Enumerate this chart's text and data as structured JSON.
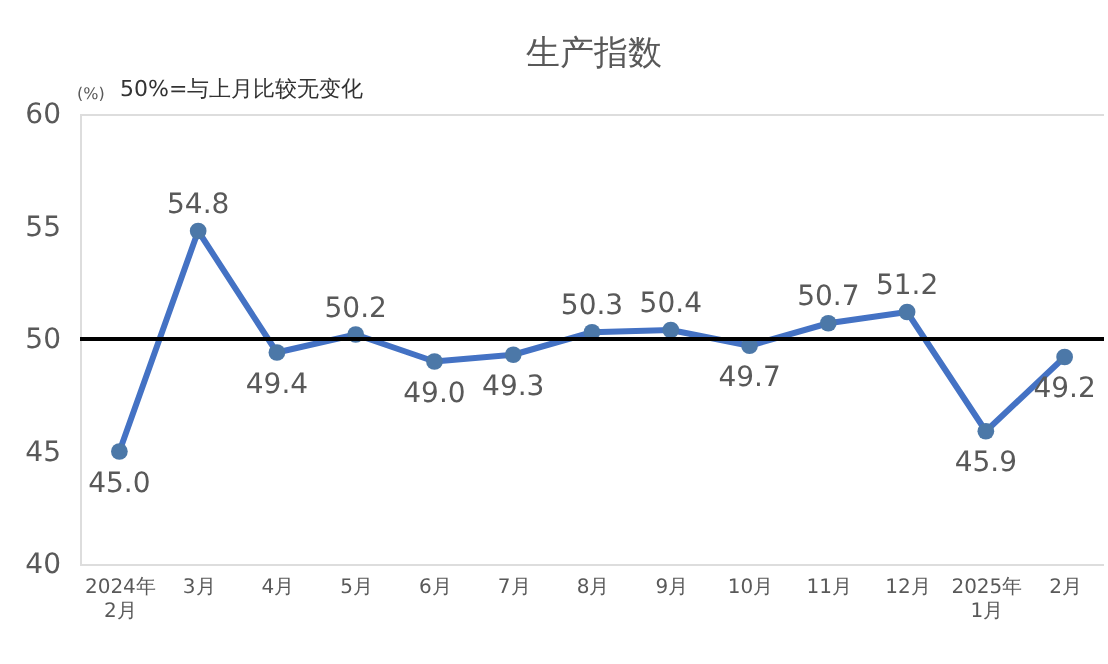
{
  "chart_data": {
    "type": "line",
    "title": "生产指数",
    "ylabel": "(%)",
    "annotations": [
      "50%=与上月比较无变化"
    ],
    "categories": [
      "2024年\n2月",
      "3月",
      "4月",
      "5月",
      "6月",
      "7月",
      "8月",
      "9月",
      "10月",
      "11月",
      "12月",
      "2025年\n1月",
      "2月"
    ],
    "series": [
      {
        "color": "#4472c4",
        "values": [
          45.0,
          54.8,
          49.4,
          50.2,
          49.0,
          49.3,
          50.3,
          50.4,
          49.7,
          50.7,
          51.2,
          45.9,
          49.2
        ],
        "value_labels": [
          "45.0",
          "54.8",
          "49.4",
          "50.2",
          "49.0",
          "49.3",
          "50.3",
          "50.4",
          "49.7",
          "50.7",
          "51.2",
          "45.9",
          "49.2"
        ]
      }
    ],
    "ylim": [
      40,
      60
    ],
    "yticks": [
      40,
      45,
      50,
      55,
      60
    ],
    "ref_lines": [
      {
        "axis": "y",
        "value": 50,
        "color": "#000000"
      }
    ],
    "marker": "circle",
    "line_style": "solid"
  }
}
